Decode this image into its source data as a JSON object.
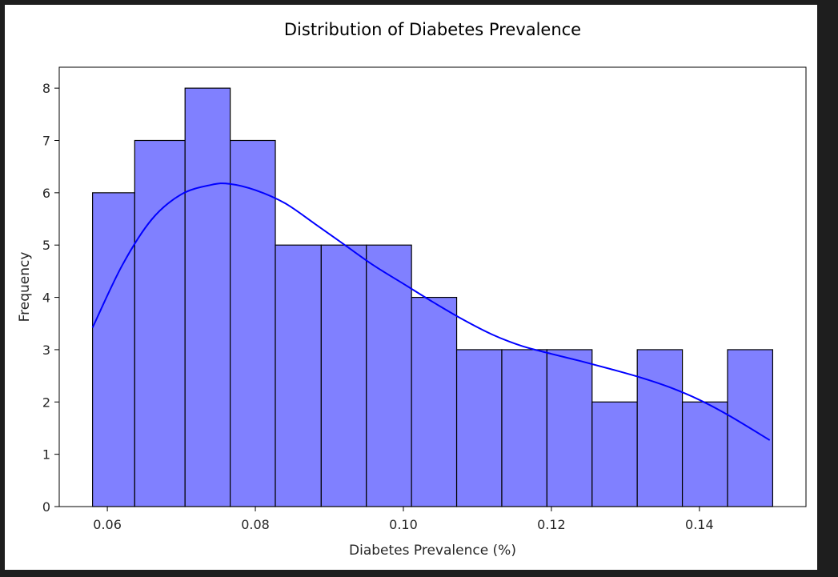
{
  "chart_data": {
    "type": "bar",
    "title": "Distribution of Diabetes Prevalence",
    "xlabel": "Diabetes Prevalence (%)",
    "ylabel": "Frequency",
    "bins": [
      {
        "start": 0.058,
        "end": 0.0637,
        "count": 6
      },
      {
        "start": 0.0637,
        "end": 0.0705,
        "count": 7
      },
      {
        "start": 0.0705,
        "end": 0.0766,
        "count": 8
      },
      {
        "start": 0.0766,
        "end": 0.0827,
        "count": 7
      },
      {
        "start": 0.0827,
        "end": 0.0889,
        "count": 5
      },
      {
        "start": 0.0889,
        "end": 0.095,
        "count": 5
      },
      {
        "start": 0.095,
        "end": 0.1011,
        "count": 5
      },
      {
        "start": 0.1011,
        "end": 0.1072,
        "count": 4
      },
      {
        "start": 0.1072,
        "end": 0.1133,
        "count": 3
      },
      {
        "start": 0.1133,
        "end": 0.1194,
        "count": 3
      },
      {
        "start": 0.1194,
        "end": 0.1255,
        "count": 3
      },
      {
        "start": 0.1255,
        "end": 0.1316,
        "count": 2
      },
      {
        "start": 0.1316,
        "end": 0.1377,
        "count": 3
      },
      {
        "start": 0.1377,
        "end": 0.1438,
        "count": 2
      },
      {
        "start": 0.1438,
        "end": 0.1499,
        "count": 3
      }
    ],
    "kde": {
      "x": [
        0.058,
        0.062,
        0.066,
        0.07,
        0.074,
        0.0765,
        0.08,
        0.084,
        0.088,
        0.092,
        0.096,
        0.1,
        0.104,
        0.108,
        0.112,
        0.116,
        0.12,
        0.124,
        0.128,
        0.132,
        0.136,
        0.14,
        0.144,
        0.1495
      ],
      "y": [
        3.42,
        4.61,
        5.49,
        5.97,
        6.15,
        6.17,
        6.05,
        5.8,
        5.41,
        5.01,
        4.61,
        4.26,
        3.91,
        3.58,
        3.29,
        3.07,
        2.92,
        2.78,
        2.63,
        2.47,
        2.28,
        2.04,
        1.74,
        1.27
      ]
    },
    "xlim": [
      0.0535,
      0.1544
    ],
    "ylim": [
      0,
      8.4
    ],
    "xticks": [
      0.06,
      0.08,
      0.1,
      0.12,
      0.14
    ],
    "xtick_labels": [
      "0.06",
      "0.08",
      "0.10",
      "0.12",
      "0.14"
    ],
    "yticks": [
      0,
      1,
      2,
      3,
      4,
      5,
      6,
      7,
      8
    ],
    "ytick_labels": [
      "0",
      "1",
      "2",
      "3",
      "4",
      "5",
      "6",
      "7",
      "8"
    ],
    "grid": false,
    "colors": {
      "bar_fill": "#8080ff",
      "bar_edge": "#000000",
      "kde_line": "#0000ff"
    }
  }
}
